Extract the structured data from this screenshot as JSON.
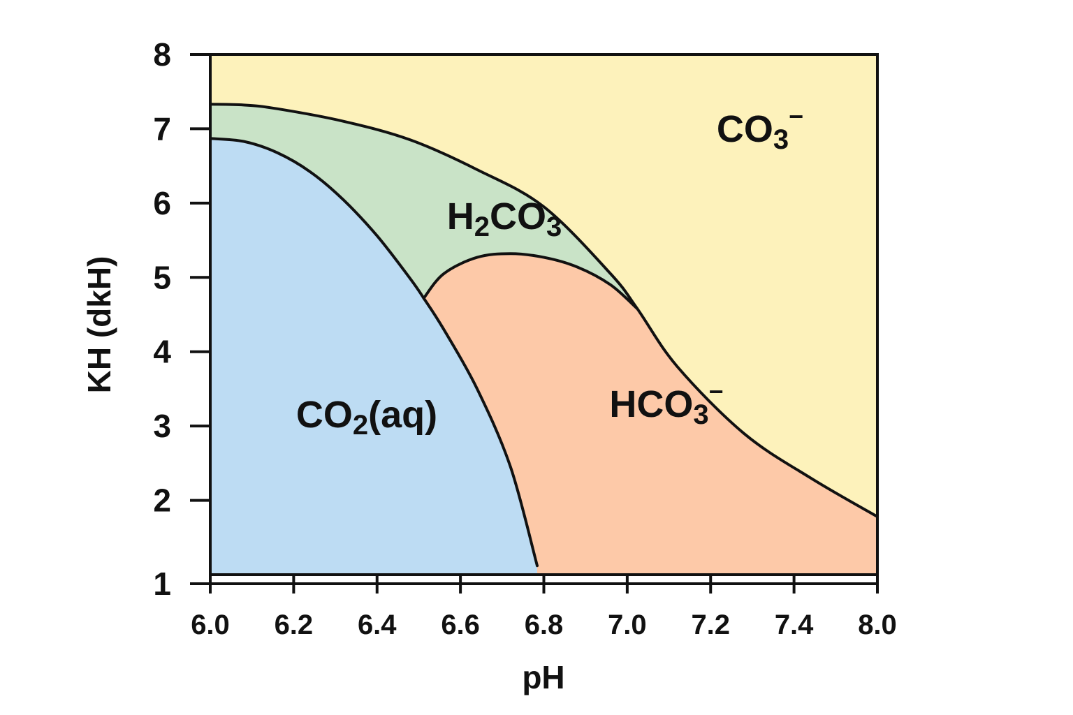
{
  "chart_data": {
    "type": "area",
    "title": "",
    "xlabel": "pH",
    "ylabel": "KH (dkH)",
    "xlim": [
      6.0,
      8.0
    ],
    "ylim": [
      1,
      8
    ],
    "x_ticks": [
      "6.0",
      "6.2",
      "6.4",
      "6.6",
      "6.8",
      "7.0",
      "7.2",
      "7.4",
      "8.0"
    ],
    "x_tick_values": [
      6.0,
      6.2,
      6.4,
      6.6,
      6.8,
      7.0,
      7.2,
      7.4,
      8.0
    ],
    "y_ticks": [
      "1",
      "2",
      "3",
      "4",
      "5",
      "6",
      "7",
      "8"
    ],
    "y_tick_values": [
      1,
      2,
      3,
      4,
      5,
      6,
      7,
      8
    ],
    "boundaries": [
      {
        "id": "co2_upper",
        "points": [
          [
            6.0,
            6.87
          ],
          [
            6.1,
            6.83
          ],
          [
            6.2,
            6.68
          ],
          [
            6.3,
            6.42
          ],
          [
            6.4,
            6.04
          ],
          [
            6.5,
            5.56
          ],
          [
            6.6,
            4.98
          ],
          [
            6.64,
            4.72
          ],
          [
            6.7,
            4.3
          ],
          [
            6.8,
            3.5
          ],
          [
            6.9,
            2.45
          ],
          [
            6.98,
            1.12
          ]
        ]
      },
      {
        "id": "h2co3_upper",
        "points": [
          [
            6.0,
            7.33
          ],
          [
            6.1,
            7.32
          ],
          [
            6.2,
            7.27
          ],
          [
            6.4,
            7.1
          ],
          [
            6.6,
            6.85
          ],
          [
            6.8,
            6.45
          ],
          [
            7.0,
            5.95
          ],
          [
            7.2,
            5.05
          ],
          [
            7.28,
            4.58
          ],
          [
            7.4,
            3.8
          ],
          [
            7.6,
            2.9
          ],
          [
            7.8,
            2.3
          ],
          [
            8.0,
            1.78
          ]
        ]
      },
      {
        "id": "hco3_upper",
        "points": [
          [
            6.64,
            4.72
          ],
          [
            6.7,
            5.05
          ],
          [
            6.8,
            5.27
          ],
          [
            6.9,
            5.32
          ],
          [
            7.0,
            5.27
          ],
          [
            7.1,
            5.14
          ],
          [
            7.2,
            4.9
          ],
          [
            7.28,
            4.58
          ]
        ]
      }
    ],
    "regions": [
      {
        "name": "CO2(aq)",
        "label_main": "CO",
        "label_sub": "2",
        "label_tail": "(aq)",
        "color": "#bddcf3"
      },
      {
        "name": "H2CO3",
        "label_main": "H",
        "label_sub": "2",
        "label_tail": "CO",
        "label_sub2": "3",
        "color": "#c9e3c7"
      },
      {
        "name": "HCO3-",
        "label_main": "HCO",
        "label_sub": "3",
        "label_sup": "−",
        "color": "#fdc9a8"
      },
      {
        "name": "CO3-",
        "label_main": "CO",
        "label_sub": "3",
        "label_sup": "−",
        "color": "#fdf2bb"
      }
    ]
  }
}
